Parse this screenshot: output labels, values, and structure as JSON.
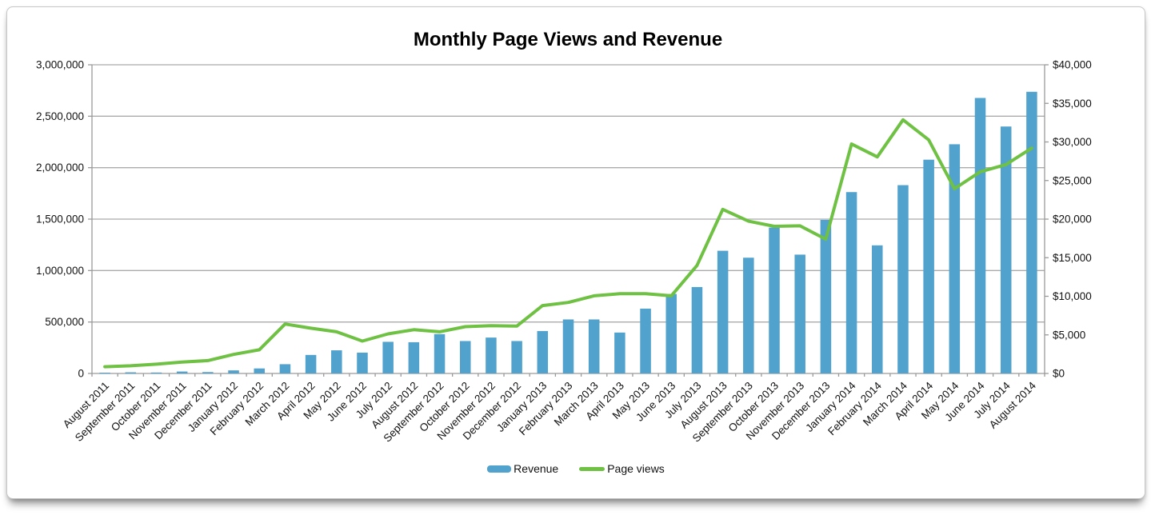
{
  "chart_data": {
    "type": "combo",
    "title": "Monthly Page Views and Revenue",
    "categories": [
      "August 2011",
      "September 2011",
      "October 2011",
      "November 2011",
      "December 2011",
      "January 2012",
      "February 2012",
      "March 2012",
      "April 2012",
      "May 2012",
      "June 2012",
      "July 2012",
      "August 2012",
      "September 2012",
      "October 2012",
      "November 2012",
      "December 2012",
      "January 2013",
      "February 2013",
      "March 2013",
      "April 2013",
      "May 2013",
      "June 2013",
      "July 2013",
      "August 2013",
      "September 2013",
      "October 2013",
      "November 2013",
      "December 2013",
      "January 2014",
      "February 2014",
      "March 2014",
      "April 2014",
      "May 2014",
      "June 2014",
      "July 2014",
      "August 2014"
    ],
    "series": [
      {
        "name": "Revenue",
        "type": "bar",
        "axis": "right",
        "color": "#52A2CE",
        "values": [
          100,
          150,
          120,
          250,
          180,
          400,
          650,
          1200,
          2400,
          3000,
          2700,
          4100,
          4050,
          5100,
          4200,
          4650,
          4200,
          5500,
          7000,
          7000,
          5300,
          8400,
          10300,
          11200,
          15900,
          15000,
          18900,
          15400,
          19900,
          23500,
          16600,
          24400,
          27700,
          29700,
          35700,
          32000,
          36500
        ]
      },
      {
        "name": "Page views",
        "type": "line",
        "axis": "left",
        "color": "#6FC143",
        "values": [
          65000,
          75000,
          90000,
          110000,
          125000,
          185000,
          230000,
          480000,
          440000,
          405000,
          315000,
          385000,
          425000,
          405000,
          455000,
          465000,
          460000,
          660000,
          690000,
          755000,
          775000,
          775000,
          755000,
          1050000,
          1595000,
          1480000,
          1430000,
          1435000,
          1305000,
          2230000,
          2105000,
          2465000,
          2270000,
          1795000,
          1960000,
          2030000,
          2190000
        ]
      }
    ],
    "left_axis": {
      "min": 0,
      "max": 3000000,
      "tick_interval": 500000,
      "tick_labels": [
        "0",
        "500,000",
        "1,000,000",
        "1,500,000",
        "2,000,000",
        "2,500,000",
        "3,000,000"
      ]
    },
    "right_axis": {
      "min": 0,
      "max": 40000,
      "tick_interval": 5000,
      "tick_labels": [
        "$0",
        "$5,000",
        "$10,000",
        "$15,000",
        "$20,000",
        "$25,000",
        "$30,000",
        "$35,000",
        "$40,000"
      ]
    },
    "legend_position": "bottom",
    "grid": true
  },
  "colors": {
    "bar": "#52A2CE",
    "line": "#6FC143",
    "gridline": "#ABABAB",
    "axis": "#9A9A9A",
    "text": "#111111"
  }
}
